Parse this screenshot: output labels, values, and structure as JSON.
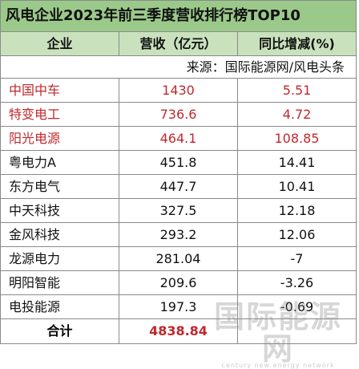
{
  "table": {
    "title": "风电企业2023年前三季度营收排行榜TOP10",
    "headers": [
      "企业",
      "营收（亿元）",
      "同比增减(%)"
    ],
    "source": "来源：国际能源网/风电头条",
    "rows": [
      {
        "company": "中国中车",
        "revenue": "1430",
        "yoy": "5.51",
        "highlight": true
      },
      {
        "company": "特变电工",
        "revenue": "736.6",
        "yoy": "4.72",
        "highlight": true
      },
      {
        "company": "阳光电源",
        "revenue": "464.1",
        "yoy": "108.85",
        "highlight": true
      },
      {
        "company": "粤电力A",
        "revenue": "451.8",
        "yoy": "14.41",
        "highlight": false
      },
      {
        "company": "东方电气",
        "revenue": "447.7",
        "yoy": "10.41",
        "highlight": false
      },
      {
        "company": "中天科技",
        "revenue": "327.5",
        "yoy": "12.18",
        "highlight": false
      },
      {
        "company": "金风科技",
        "revenue": "293.2",
        "yoy": "12.06",
        "highlight": false
      },
      {
        "company": "龙源电力",
        "revenue": "281.04",
        "yoy": "-7",
        "highlight": false
      },
      {
        "company": "明阳智能",
        "revenue": "209.6",
        "yoy": "-3.26",
        "highlight": false
      },
      {
        "company": "电投能源",
        "revenue": "197.3",
        "yoy": "-0.69",
        "highlight": false
      }
    ],
    "total": {
      "label": "合计",
      "revenue": "4838.84"
    }
  },
  "watermark": {
    "main": "国际能源网",
    "sub": "century new energy network"
  },
  "colors": {
    "title_bg": "#9bc98a",
    "header_bg": "#c9e2bd",
    "highlight_text": "#c0282d",
    "border": "#8a8a8a"
  }
}
